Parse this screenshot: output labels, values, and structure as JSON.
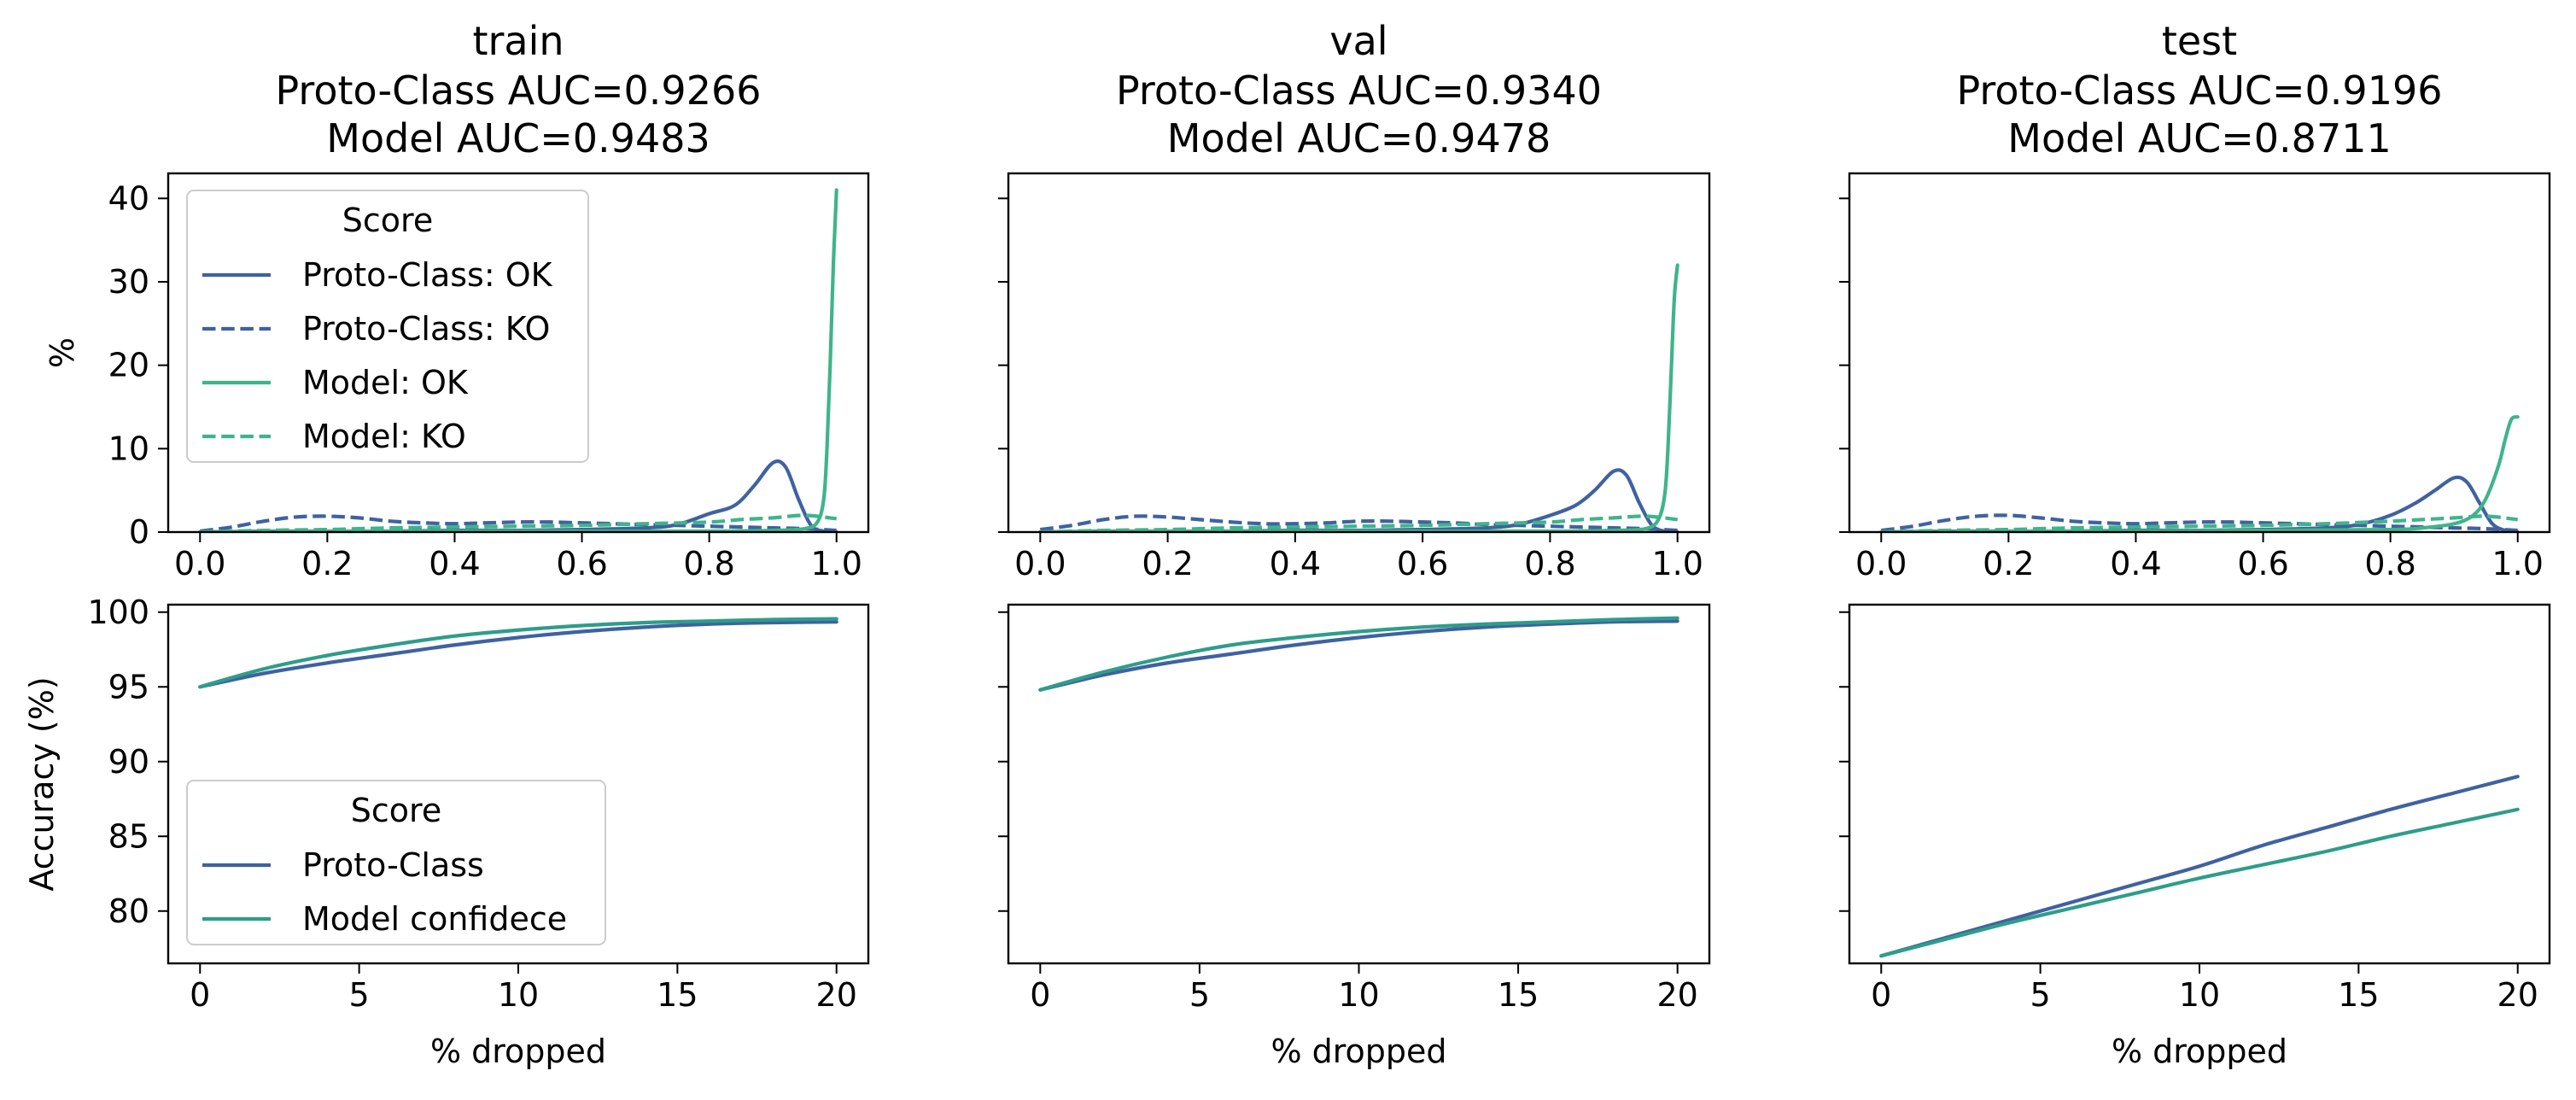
{
  "colors": {
    "proto": "#3f62a0",
    "model": "#3fb48a",
    "model_acc": "#2e9d8a",
    "axis": "#000000",
    "legend_border": "#cccccc"
  },
  "chart_data": [
    {
      "type": "line",
      "panel": "density-train",
      "title": "train",
      "subtitle": [
        "Proto-Class AUC=0.9266",
        "Model AUC=0.9483"
      ],
      "xlabel": "",
      "ylabel": "%",
      "xlim": [
        -0.05,
        1.05
      ],
      "ylim": [
        0,
        43
      ],
      "xticks": [
        0.0,
        0.2,
        0.4,
        0.6,
        0.8,
        1.0
      ],
      "xtick_labels": [
        "0.0",
        "0.2",
        "0.4",
        "0.6",
        "0.8",
        "1.0"
      ],
      "yticks": [
        0,
        10,
        20,
        30,
        40
      ],
      "ytick_labels": [
        "0",
        "10",
        "20",
        "30",
        "40"
      ],
      "show_ytick_labels": true,
      "legend": {
        "title": "Score",
        "placement": "top-left"
      },
      "series": [
        {
          "name": "Proto-Class: OK",
          "color": "proto",
          "dash": false,
          "x": [
            0.0,
            0.1,
            0.2,
            0.3,
            0.4,
            0.5,
            0.6,
            0.7,
            0.75,
            0.8,
            0.84,
            0.87,
            0.9,
            0.92,
            0.94,
            0.96,
            0.98,
            1.0
          ],
          "y": [
            0.0,
            0.1,
            0.1,
            0.1,
            0.2,
            0.2,
            0.3,
            0.5,
            0.9,
            2.2,
            3.2,
            5.5,
            8.3,
            7.8,
            4.0,
            0.8,
            0.1,
            0.0
          ]
        },
        {
          "name": "Proto-Class: KO",
          "color": "proto",
          "dash": true,
          "x": [
            0.0,
            0.05,
            0.1,
            0.15,
            0.2,
            0.25,
            0.3,
            0.35,
            0.4,
            0.45,
            0.5,
            0.55,
            0.6,
            0.65,
            0.7,
            0.75,
            0.8,
            0.85,
            0.9,
            0.95,
            1.0
          ],
          "y": [
            0.1,
            0.6,
            1.3,
            1.8,
            1.9,
            1.7,
            1.3,
            1.1,
            1.0,
            1.1,
            1.2,
            1.2,
            1.1,
            1.0,
            0.9,
            0.8,
            0.7,
            0.6,
            0.5,
            0.4,
            0.2
          ]
        },
        {
          "name": "Model: OK",
          "color": "model",
          "dash": false,
          "x": [
            0.0,
            0.2,
            0.4,
            0.6,
            0.8,
            0.9,
            0.95,
            0.97,
            0.98,
            0.985,
            0.99,
            0.995,
            1.0
          ],
          "y": [
            0.0,
            0.1,
            0.1,
            0.1,
            0.1,
            0.2,
            0.4,
            1.2,
            4.0,
            10.0,
            20.0,
            32.0,
            41.0
          ]
        },
        {
          "name": "Model: KO",
          "color": "model",
          "dash": true,
          "x": [
            0.0,
            0.1,
            0.2,
            0.3,
            0.4,
            0.5,
            0.6,
            0.7,
            0.8,
            0.85,
            0.9,
            0.95,
            1.0
          ],
          "y": [
            0.0,
            0.2,
            0.3,
            0.5,
            0.6,
            0.7,
            0.8,
            1.0,
            1.2,
            1.5,
            1.7,
            2.0,
            1.6
          ]
        }
      ]
    },
    {
      "type": "line",
      "panel": "density-val",
      "title": "val",
      "subtitle": [
        "Proto-Class AUC=0.9340",
        "Model AUC=0.9478"
      ],
      "xlabel": "",
      "ylabel": "",
      "xlim": [
        -0.05,
        1.05
      ],
      "ylim": [
        0,
        43
      ],
      "xticks": [
        0.0,
        0.2,
        0.4,
        0.6,
        0.8,
        1.0
      ],
      "xtick_labels": [
        "0.0",
        "0.2",
        "0.4",
        "0.6",
        "0.8",
        "1.0"
      ],
      "yticks": [
        0,
        10,
        20,
        30,
        40
      ],
      "ytick_labels": [
        "",
        "",
        "",
        "",
        ""
      ],
      "show_ytick_labels": false,
      "series": [
        {
          "name": "Proto-Class: OK",
          "color": "proto",
          "dash": false,
          "x": [
            0.0,
            0.1,
            0.2,
            0.3,
            0.4,
            0.5,
            0.6,
            0.7,
            0.75,
            0.8,
            0.84,
            0.87,
            0.9,
            0.92,
            0.94,
            0.96,
            0.98,
            1.0
          ],
          "y": [
            0.0,
            0.1,
            0.1,
            0.1,
            0.2,
            0.2,
            0.3,
            0.5,
            0.9,
            2.0,
            3.2,
            5.0,
            7.3,
            6.8,
            3.5,
            0.8,
            0.1,
            0.0
          ]
        },
        {
          "name": "Proto-Class: KO",
          "color": "proto",
          "dash": true,
          "x": [
            0.0,
            0.05,
            0.1,
            0.15,
            0.2,
            0.25,
            0.3,
            0.35,
            0.4,
            0.45,
            0.5,
            0.55,
            0.6,
            0.65,
            0.7,
            0.75,
            0.8,
            0.85,
            0.9,
            0.95,
            1.0
          ],
          "y": [
            0.3,
            0.8,
            1.5,
            1.9,
            1.8,
            1.5,
            1.2,
            1.0,
            1.0,
            1.1,
            1.3,
            1.3,
            1.2,
            1.1,
            0.9,
            0.8,
            0.7,
            0.6,
            0.5,
            0.4,
            0.2
          ]
        },
        {
          "name": "Model: OK",
          "color": "model",
          "dash": false,
          "x": [
            0.0,
            0.2,
            0.4,
            0.6,
            0.8,
            0.9,
            0.95,
            0.97,
            0.98,
            0.985,
            0.99,
            0.995,
            1.0
          ],
          "y": [
            0.0,
            0.1,
            0.1,
            0.1,
            0.1,
            0.2,
            0.4,
            1.5,
            4.5,
            10.0,
            19.0,
            28.0,
            32.0
          ]
        },
        {
          "name": "Model: KO",
          "color": "model",
          "dash": true,
          "x": [
            0.0,
            0.1,
            0.2,
            0.3,
            0.4,
            0.5,
            0.6,
            0.7,
            0.8,
            0.85,
            0.9,
            0.95,
            1.0
          ],
          "y": [
            0.0,
            0.2,
            0.3,
            0.5,
            0.6,
            0.7,
            0.8,
            1.0,
            1.2,
            1.5,
            1.7,
            1.9,
            1.5
          ]
        }
      ]
    },
    {
      "type": "line",
      "panel": "density-test",
      "title": "test",
      "subtitle": [
        "Proto-Class AUC=0.9196",
        "Model AUC=0.8711"
      ],
      "xlabel": "",
      "ylabel": "",
      "xlim": [
        -0.05,
        1.05
      ],
      "ylim": [
        0,
        43
      ],
      "xticks": [
        0.0,
        0.2,
        0.4,
        0.6,
        0.8,
        1.0
      ],
      "xtick_labels": [
        "0.0",
        "0.2",
        "0.4",
        "0.6",
        "0.8",
        "1.0"
      ],
      "yticks": [
        0,
        10,
        20,
        30,
        40
      ],
      "ytick_labels": [
        "",
        "",
        "",
        "",
        ""
      ],
      "show_ytick_labels": false,
      "series": [
        {
          "name": "Proto-Class: OK",
          "color": "proto",
          "dash": false,
          "x": [
            0.0,
            0.1,
            0.2,
            0.3,
            0.4,
            0.5,
            0.6,
            0.7,
            0.75,
            0.8,
            0.84,
            0.87,
            0.9,
            0.92,
            0.94,
            0.96,
            0.98,
            1.0
          ],
          "y": [
            0.0,
            0.1,
            0.1,
            0.1,
            0.2,
            0.2,
            0.3,
            0.5,
            0.9,
            2.0,
            3.5,
            5.0,
            6.5,
            6.0,
            3.5,
            1.0,
            0.2,
            0.0
          ]
        },
        {
          "name": "Proto-Class: KO",
          "color": "proto",
          "dash": true,
          "x": [
            0.0,
            0.05,
            0.1,
            0.15,
            0.2,
            0.25,
            0.3,
            0.35,
            0.4,
            0.45,
            0.5,
            0.55,
            0.6,
            0.65,
            0.7,
            0.75,
            0.8,
            0.85,
            0.9,
            0.95,
            1.0
          ],
          "y": [
            0.2,
            0.7,
            1.4,
            1.9,
            2.0,
            1.7,
            1.3,
            1.1,
            1.0,
            1.1,
            1.2,
            1.2,
            1.1,
            1.0,
            0.9,
            0.8,
            0.7,
            0.6,
            0.5,
            0.4,
            0.2
          ]
        },
        {
          "name": "Model: OK",
          "color": "model",
          "dash": false,
          "x": [
            0.0,
            0.2,
            0.4,
            0.6,
            0.8,
            0.85,
            0.9,
            0.93,
            0.95,
            0.97,
            0.98,
            0.99,
            1.0
          ],
          "y": [
            0.0,
            0.1,
            0.1,
            0.2,
            0.3,
            0.5,
            1.0,
            2.0,
            4.0,
            8.0,
            11.0,
            13.5,
            13.8
          ]
        },
        {
          "name": "Model: KO",
          "color": "model",
          "dash": true,
          "x": [
            0.0,
            0.1,
            0.2,
            0.3,
            0.4,
            0.5,
            0.6,
            0.7,
            0.8,
            0.85,
            0.9,
            0.95,
            1.0
          ],
          "y": [
            0.0,
            0.2,
            0.3,
            0.5,
            0.6,
            0.7,
            0.8,
            1.0,
            1.3,
            1.5,
            1.7,
            1.9,
            1.5
          ]
        }
      ]
    },
    {
      "type": "line",
      "panel": "accuracy-train",
      "title": "",
      "xlabel": "% dropped",
      "ylabel": "Accuracy (%)",
      "xlim": [
        -1,
        21
      ],
      "ylim": [
        76.5,
        100.5
      ],
      "xticks": [
        0,
        5,
        10,
        15,
        20
      ],
      "xtick_labels": [
        "0",
        "5",
        "10",
        "15",
        "20"
      ],
      "yticks": [
        80,
        85,
        90,
        95,
        100
      ],
      "ytick_labels": [
        "80",
        "85",
        "90",
        "95",
        "100"
      ],
      "show_ytick_labels": true,
      "legend": {
        "title": "Score",
        "placement": "lower-left"
      },
      "series": [
        {
          "name": "Proto-Class",
          "color": "proto",
          "dash": false,
          "x": [
            0,
            2,
            4,
            6,
            8,
            10,
            12,
            14,
            16,
            18,
            20
          ],
          "y": [
            95.0,
            95.9,
            96.6,
            97.2,
            97.8,
            98.3,
            98.7,
            99.0,
            99.2,
            99.3,
            99.35
          ]
        },
        {
          "name": "Model confidece",
          "color": "model_acc",
          "dash": false,
          "x": [
            0,
            2,
            4,
            6,
            8,
            10,
            12,
            14,
            16,
            18,
            20
          ],
          "y": [
            95.0,
            96.2,
            97.1,
            97.8,
            98.4,
            98.8,
            99.1,
            99.3,
            99.4,
            99.5,
            99.55
          ]
        }
      ]
    },
    {
      "type": "line",
      "panel": "accuracy-val",
      "title": "",
      "xlabel": "% dropped",
      "ylabel": "",
      "xlim": [
        -1,
        21
      ],
      "ylim": [
        76.5,
        100.5
      ],
      "xticks": [
        0,
        5,
        10,
        15,
        20
      ],
      "xtick_labels": [
        "0",
        "5",
        "10",
        "15",
        "20"
      ],
      "yticks": [
        80,
        85,
        90,
        95,
        100
      ],
      "ytick_labels": [
        "",
        "",
        "",
        "",
        ""
      ],
      "show_ytick_labels": false,
      "series": [
        {
          "name": "Proto-Class",
          "color": "proto",
          "dash": false,
          "x": [
            0,
            2,
            4,
            6,
            8,
            10,
            12,
            14,
            16,
            18,
            20
          ],
          "y": [
            94.8,
            95.8,
            96.6,
            97.2,
            97.8,
            98.3,
            98.7,
            99.0,
            99.2,
            99.35,
            99.4
          ]
        },
        {
          "name": "Model confidece",
          "color": "model_acc",
          "dash": false,
          "x": [
            0,
            2,
            4,
            6,
            8,
            10,
            12,
            14,
            16,
            18,
            20
          ],
          "y": [
            94.8,
            96.0,
            97.0,
            97.8,
            98.3,
            98.7,
            99.0,
            99.2,
            99.35,
            99.5,
            99.6
          ]
        }
      ]
    },
    {
      "type": "line",
      "panel": "accuracy-test",
      "title": "",
      "xlabel": "% dropped",
      "ylabel": "",
      "xlim": [
        -1,
        21
      ],
      "ylim": [
        76.5,
        100.5
      ],
      "xticks": [
        0,
        5,
        10,
        15,
        20
      ],
      "xtick_labels": [
        "0",
        "5",
        "10",
        "15",
        "20"
      ],
      "yticks": [
        80,
        85,
        90,
        95,
        100
      ],
      "ytick_labels": [
        "",
        "",
        "",
        "",
        ""
      ],
      "show_ytick_labels": false,
      "series": [
        {
          "name": "Proto-Class",
          "color": "proto",
          "dash": false,
          "x": [
            0,
            2,
            4,
            6,
            8,
            10,
            12,
            14,
            16,
            18,
            20
          ],
          "y": [
            77.0,
            78.2,
            79.4,
            80.6,
            81.8,
            83.0,
            84.4,
            85.6,
            86.8,
            87.9,
            89.0
          ]
        },
        {
          "name": "Model confidece",
          "color": "model_acc",
          "dash": false,
          "x": [
            0,
            2,
            4,
            6,
            8,
            10,
            12,
            14,
            16,
            18,
            20
          ],
          "y": [
            77.0,
            78.1,
            79.2,
            80.2,
            81.2,
            82.2,
            83.1,
            84.0,
            85.0,
            85.9,
            86.8
          ]
        }
      ]
    }
  ]
}
